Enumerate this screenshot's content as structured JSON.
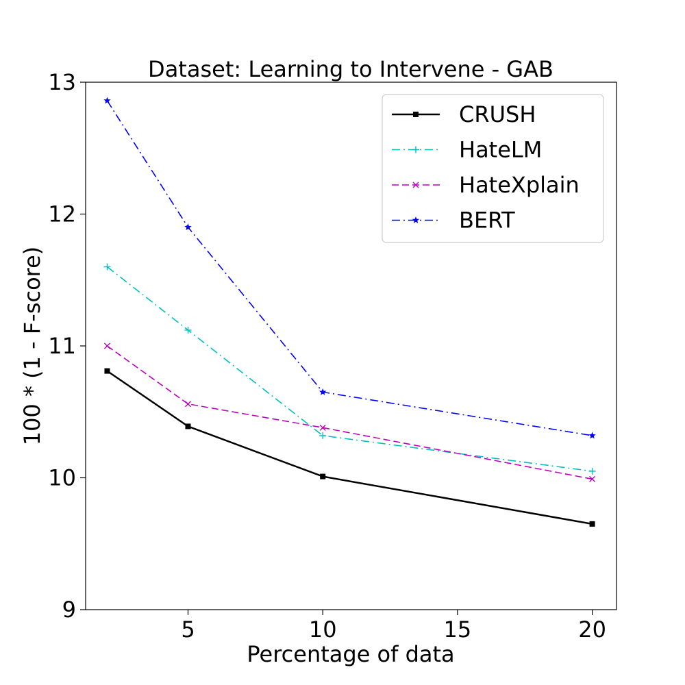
{
  "chart_data": {
    "type": "line",
    "title": "Dataset: Learning to Intervene - GAB",
    "xlabel": "Percentage of data",
    "ylabel": "100 * (1 - F-score)",
    "xlim": [
      1.2,
      20.9
    ],
    "ylim": [
      9,
      13
    ],
    "xticks": [
      5,
      10,
      15,
      20
    ],
    "yticks": [
      9,
      10,
      11,
      12,
      13
    ],
    "x": [
      2,
      5,
      10,
      20
    ],
    "legend_position": "top-right",
    "grid": false,
    "series": [
      {
        "name": "CRUSH",
        "values": [
          10.81,
          10.39,
          10.01,
          9.65
        ],
        "color": "#000000",
        "dash": "solid",
        "marker": "square"
      },
      {
        "name": "HateLM",
        "values": [
          11.6,
          11.12,
          10.32,
          10.05
        ],
        "color": "#00bfbf",
        "dash": "dashdot",
        "marker": "plus"
      },
      {
        "name": "HateXplain",
        "values": [
          11.0,
          10.56,
          10.38,
          9.99
        ],
        "color": "#bf00bf",
        "dash": "dashed",
        "marker": "x"
      },
      {
        "name": "BERT",
        "values": [
          12.86,
          11.9,
          10.65,
          10.32
        ],
        "color": "#0000ff",
        "dash": "dashdot",
        "marker": "star"
      }
    ]
  }
}
